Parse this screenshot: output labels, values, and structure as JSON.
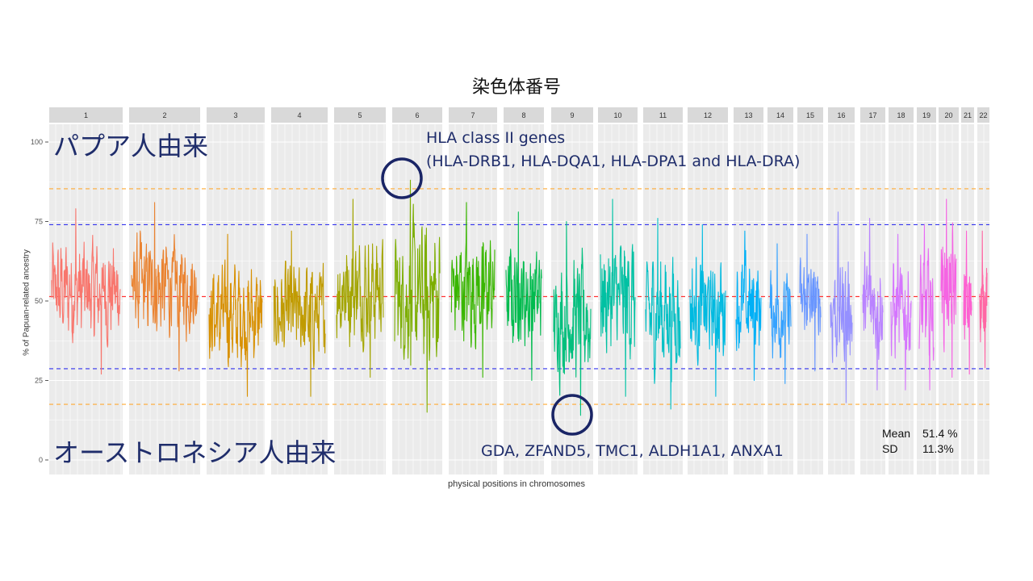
{
  "title": "染色体番号",
  "annotations": {
    "top_region_label": "パプア人由来",
    "bottom_region_label": "オーストロネシア人由来",
    "hla_title": "HLA class II genes",
    "hla_genes": "(HLA-DRB1, HLA-DQA1, HLA-DPA1 and HLA-DRA)",
    "low_genes": "GDA, ZFAND5, TMC1, ALDH1A1, ANXA1"
  },
  "stats": {
    "mean_label": "Mean",
    "mean_value": "51.4 %",
    "sd_label": "SD",
    "sd_value": "11.3%"
  },
  "chart_data": {
    "type": "line",
    "title": "",
    "xlabel": "physical positions in chromosomes",
    "ylabel": "% of Papuan-related ancestry",
    "ylim": [
      0,
      100
    ],
    "yticks": [
      0,
      25,
      50,
      75,
      100
    ],
    "grid": true,
    "facets": [
      "1",
      "2",
      "3",
      "4",
      "5",
      "6",
      "7",
      "8",
      "9",
      "10",
      "11",
      "12",
      "13",
      "14",
      "15",
      "16",
      "17",
      "18",
      "19",
      "20",
      "21",
      "22"
    ],
    "reference_lines": [
      {
        "value": 51.4,
        "color": "#ff3333",
        "style": "dashed"
      },
      {
        "value": 74,
        "color": "#3333ee",
        "style": "dashed"
      },
      {
        "value": 28.7,
        "color": "#3333ee",
        "style": "dashed"
      },
      {
        "value": 85.3,
        "color": "#ffaa33",
        "style": "dashed"
      },
      {
        "value": 17.5,
        "color": "#ffaa33",
        "style": "dashed"
      }
    ],
    "series": [
      {
        "facet": "1",
        "color": "#f8766d",
        "min": 27,
        "max": 79
      },
      {
        "facet": "2",
        "color": "#ea8331",
        "min": 28,
        "max": 81
      },
      {
        "facet": "3",
        "color": "#d89000",
        "min": 20,
        "max": 71
      },
      {
        "facet": "4",
        "color": "#c09b00",
        "min": 20,
        "max": 72
      },
      {
        "facet": "5",
        "color": "#a3a500",
        "min": 26,
        "max": 82
      },
      {
        "facet": "6",
        "color": "#7cae00",
        "min": 15,
        "max": 88
      },
      {
        "facet": "7",
        "color": "#39b600",
        "min": 26,
        "max": 81
      },
      {
        "facet": "8",
        "color": "#00bb4e",
        "min": 25,
        "max": 78
      },
      {
        "facet": "9",
        "color": "#00bf7d",
        "min": 14,
        "max": 75
      },
      {
        "facet": "10",
        "color": "#00c1a3",
        "min": 20,
        "max": 82
      },
      {
        "facet": "11",
        "color": "#00bfc4",
        "min": 16,
        "max": 76
      },
      {
        "facet": "12",
        "color": "#00bae0",
        "min": 20,
        "max": 74
      },
      {
        "facet": "13",
        "color": "#00b0f6",
        "min": 25,
        "max": 72
      },
      {
        "facet": "14",
        "color": "#35a2ff",
        "min": 24,
        "max": 68
      },
      {
        "facet": "15",
        "color": "#6996ff",
        "min": 28,
        "max": 71
      },
      {
        "facet": "16",
        "color": "#9590ff",
        "min": 18,
        "max": 78
      },
      {
        "facet": "17",
        "color": "#b983ff",
        "min": 22,
        "max": 76
      },
      {
        "facet": "18",
        "color": "#d575fe",
        "min": 22,
        "max": 71
      },
      {
        "facet": "19",
        "color": "#e76bf3",
        "min": 22,
        "max": 74
      },
      {
        "facet": "20",
        "color": "#f564e3",
        "min": 26,
        "max": 82
      },
      {
        "facet": "21",
        "color": "#fd61d1",
        "min": 27,
        "max": 72
      },
      {
        "facet": "22",
        "color": "#ff67a4",
        "min": 29,
        "max": 72
      }
    ]
  }
}
